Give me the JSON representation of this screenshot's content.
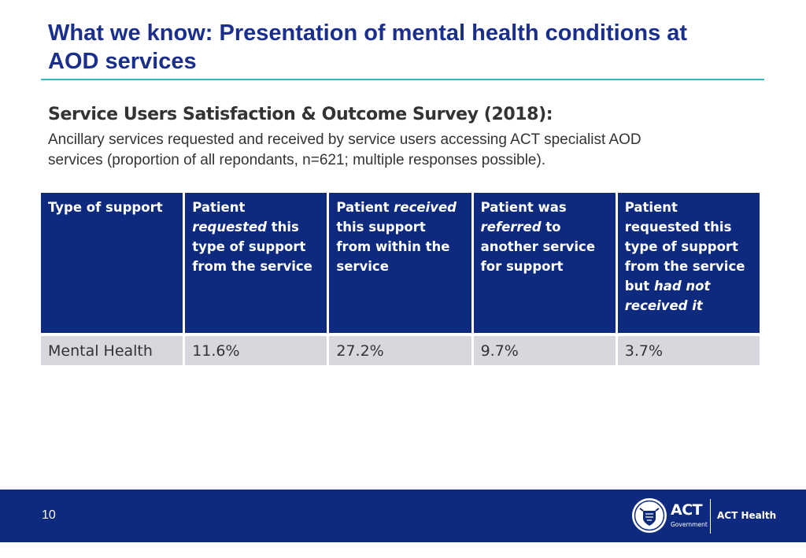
{
  "slide": {
    "title_line1": "What we know: Presentation of mental health conditions at",
    "title_line2": "AOD services",
    "subtitle": "Service Users Satisfaction & Outcome Survey (2018):",
    "caption_line1": "Ancillary services requested and received by service users accessing ACT specialist AOD",
    "caption_line2": "services (proportion of all repondants, n=621; multiple responses possible)."
  },
  "table": {
    "headers": [
      {
        "parts": [
          "Type of support"
        ]
      },
      {
        "parts": [
          "Patient ",
          "requested",
          " this type of support from the service"
        ]
      },
      {
        "parts": [
          "Patient ",
          "received",
          " this support from within the service"
        ]
      },
      {
        "parts": [
          "Patient was ",
          "referred",
          " to another service for support"
        ]
      },
      {
        "parts": [
          "Patient requested this type of support from the service but ",
          "had not received it",
          ""
        ]
      }
    ],
    "rows": [
      {
        "cells": [
          "Mental Health",
          "11.6%",
          "27.2%",
          "9.7%",
          "3.7%"
        ]
      }
    ]
  },
  "footer": {
    "page_number": "10",
    "logo_act": "ACT",
    "logo_gov": "Government",
    "logo_health": "ACT Health"
  },
  "colors": {
    "title": "#1a2f8c",
    "rule": "#37b6c4",
    "header_bg": "#0d2a7e",
    "row_bg": "#d6d8de",
    "footer_bg": "#0d2a7e"
  }
}
